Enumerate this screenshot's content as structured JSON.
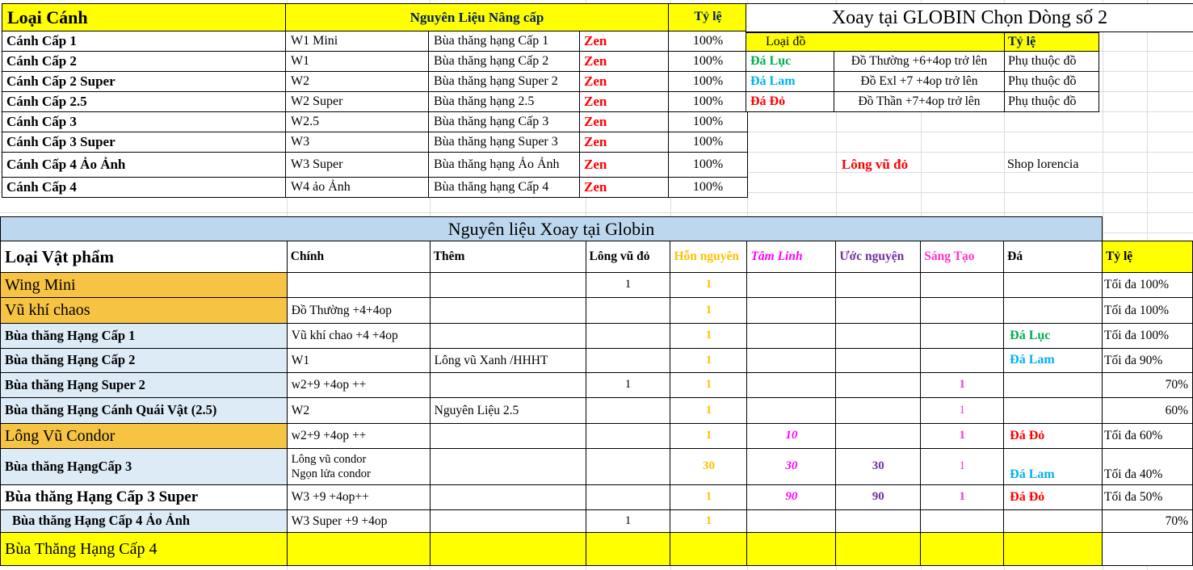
{
  "palette": {
    "yellow": "#FFFF00",
    "orange_row": "#F6C343",
    "light_blue_row": "#DDEBF7",
    "banner_blue": "#BDD7EE",
    "zen_red": "#FF0000",
    "gold": "#FFC000",
    "magenta": "#FF00FF",
    "purple": "#7030A0",
    "pink": "#FF33CC",
    "green": "#00B050",
    "cyan": "#00B0F0",
    "header_navy": "#002060"
  },
  "upgrade_table": {
    "title": "Loại Cánh",
    "materials_header": "Nguyên Liệu Nâng cấp",
    "rate_header": "Tỷ lệ",
    "rows": [
      {
        "wing": "Cánh  Cấp 1",
        "material_1": "W1 Mini",
        "material_2": "Bùa thăng hạng Cấp 1",
        "cost": "Zen",
        "rate": "100%"
      },
      {
        "wing": "Cánh  Cấp 2",
        "material_1": "W1",
        "material_2": "Bùa thăng hạng Cấp 2",
        "cost": "Zen",
        "rate": "100%"
      },
      {
        "wing": "Cánh  Cấp 2 Super",
        "material_1": "W2",
        "material_2": "Bùa thăng hạng Super 2",
        "cost": "Zen",
        "rate": "100%"
      },
      {
        "wing": "Cánh  Cấp 2.5",
        "material_1": "W2 Super",
        "material_2": "Bùa thăng hạng 2.5",
        "cost": "Zen",
        "rate": "100%"
      },
      {
        "wing": "Cánh  Cấp 3",
        "material_1": "W2.5",
        "material_2": "Bùa thăng hạng Cấp 3",
        "cost": "Zen",
        "rate": "100%"
      },
      {
        "wing": "Cánh  Cấp 3 Super",
        "material_1": "W3",
        "material_2": "Bùa thăng hạng Super 3",
        "cost": "Zen",
        "rate": "100%"
      },
      {
        "wing": "Cánh  Cấp 4 Ảo Ảnh",
        "material_1": "W3 Super",
        "material_2": "Bùa thăng hạng Ảo Ảnh",
        "cost": "Zen",
        "rate": "100%"
      },
      {
        "wing": "Cánh  Cấp 4",
        "material_1": "W4 ảo Ảnh",
        "material_2": "Bùa thăng hạng Cấp 4",
        "cost": "Zen",
        "rate": "100%"
      }
    ]
  },
  "globin_panel": {
    "title": "Xoay tại GLOBIN Chọn Dòng số 2",
    "item_type_header": "Loại đồ",
    "rate_header": "Tỷ lệ",
    "rows": [
      {
        "stone": "Đá Lục",
        "stone_color": "#00B050",
        "desc": "Đồ Thường +6+4op trở lên",
        "rate": "Phụ thuộc đồ"
      },
      {
        "stone": "Đá Lam",
        "stone_color": "#00B0F0",
        "desc": "Đồ Exl +7 +4op trở lên",
        "rate": "Phụ thuộc đồ"
      },
      {
        "stone": "Đá Đỏ",
        "stone_color": "#FF0000",
        "desc": "Đồ Thần +7+4op trở lên",
        "rate": "Phụ thuộc đồ"
      }
    ],
    "note_item": "Lông vũ đỏ",
    "note_source": "Shop lorencia"
  },
  "craft_table": {
    "banner": "Nguyên liệu Xoay tại Globin",
    "columns": [
      {
        "label": "Loại Vật phẩm"
      },
      {
        "label": "Chính"
      },
      {
        "label": "Thêm"
      },
      {
        "label": "Lông vũ đỏ"
      },
      {
        "label": "Hỗn nguyên",
        "color": "#FFC000"
      },
      {
        "label": "Tâm Linh",
        "color": "#FF00FF",
        "italic": true
      },
      {
        "label": "Ước nguyện",
        "color": "#7030A0"
      },
      {
        "label": "Sáng Tạo",
        "color": "#FF33CC"
      },
      {
        "label": "Đá"
      },
      {
        "label": "Tỷ lệ",
        "bg": "#FFFF00"
      }
    ],
    "rows": [
      {
        "item": "Wing Mini",
        "item_style": "orange",
        "main": "",
        "extra": "",
        "red_feather": "1",
        "chaos": "1",
        "soul": "",
        "wish": "",
        "creation": "",
        "stone": "",
        "stone_color": "",
        "rate": "Tối đa 100%",
        "rate_align": "left"
      },
      {
        "item": "Vũ khí chaos",
        "item_style": "orange",
        "main": "Đồ Thường +4+4op",
        "extra": "",
        "red_feather": "",
        "chaos": "1",
        "soul": "",
        "wish": "",
        "creation": "",
        "stone": "",
        "stone_color": "",
        "rate": "Tối đa 100%",
        "rate_align": "left"
      },
      {
        "item": "Bùa thăng Hạng Cấp 1",
        "item_style": "blue",
        "main": "Vũ khí chao +4 +4op",
        "extra": "",
        "red_feather": "",
        "chaos": "1",
        "soul": "",
        "wish": "",
        "creation": "",
        "stone": "Đá Lục",
        "stone_color": "#00B050",
        "rate": "Tối đa 100%",
        "rate_align": "left"
      },
      {
        "item": "Bùa thăng Hạng Cấp 2",
        "item_style": "blue",
        "main": "W1",
        "extra": "Lông vũ Xanh /HHHT",
        "red_feather": "",
        "chaos": "1",
        "soul": "",
        "wish": "",
        "creation": "",
        "stone": "Đá Lam",
        "stone_color": "#00B0F0",
        "rate": "Tối đa 90%",
        "rate_align": "left"
      },
      {
        "item": "Bùa thăng Hạng Super 2",
        "item_style": "blue",
        "main": "w2+9 +4op ++",
        "extra": "",
        "red_feather": "1",
        "chaos": "1",
        "soul": "",
        "wish": "",
        "creation": "1",
        "stone": "",
        "stone_color": "",
        "rate": "70%",
        "rate_align": "right"
      },
      {
        "item": "Bùa thăng Hạng Cánh Quái Vật (2.5)",
        "item_style": "blue",
        "main": "W2",
        "extra": "Nguyên Liệu 2.5",
        "red_feather": "",
        "chaos": "1",
        "soul": "",
        "wish": "",
        "creation": "1",
        "creation_light": true,
        "stone": "",
        "stone_color": "",
        "rate": "60%",
        "rate_align": "right"
      },
      {
        "item": "Lông Vũ Condor",
        "item_style": "orange",
        "main": "w2+9 +4op ++",
        "extra": "",
        "red_feather": "",
        "chaos": "1",
        "soul": "10",
        "wish": "",
        "creation": "1",
        "stone": "Đá Đỏ",
        "stone_color": "#FF0000",
        "rate": "Tối đa 60%",
        "rate_align": "left"
      },
      {
        "item": "Bùa thăng HạngCấp 3",
        "item_style": "blue",
        "main": "Lông vũ condor\nNgọn lửa condor",
        "extra": "",
        "red_feather": "",
        "chaos": "30",
        "soul": "30",
        "wish": "30",
        "creation": "1",
        "creation_light": true,
        "stone": "Đá Lam",
        "stone_color": "#00B0F0",
        "stone_valign": "bottom",
        "rate": "Tối đa 40%",
        "rate_align": "left",
        "rate_valign": "bottom"
      },
      {
        "item": "Bùa thăng Hạng Cấp 3 Super",
        "item_style": "white-big",
        "main": "W3 +9 +4op++",
        "extra": "",
        "red_feather": "",
        "chaos": "1",
        "soul": "90",
        "wish": "90",
        "creation": "1",
        "stone": "Đá Đỏ",
        "stone_color": "#FF0000",
        "rate": "Tối đa 50%",
        "rate_align": "left"
      },
      {
        "item": "Bùa thăng Hạng Cấp 4 Ảo Ảnh",
        "item_style": "blue-indent",
        "main": "W3 Super +9 +4op",
        "extra": "",
        "red_feather": "1",
        "chaos": "1",
        "soul": "",
        "wish": "",
        "creation": "",
        "stone": "",
        "stone_color": "",
        "rate": "70%",
        "rate_align": "right"
      },
      {
        "item": "Bùa Thăng Hạng Cấp 4",
        "item_style": "yellow-span",
        "main": "",
        "extra": "",
        "red_feather": "",
        "chaos": "",
        "soul": "",
        "wish": "",
        "creation": "",
        "stone": "",
        "stone_color": "",
        "rate": ""
      }
    ]
  }
}
